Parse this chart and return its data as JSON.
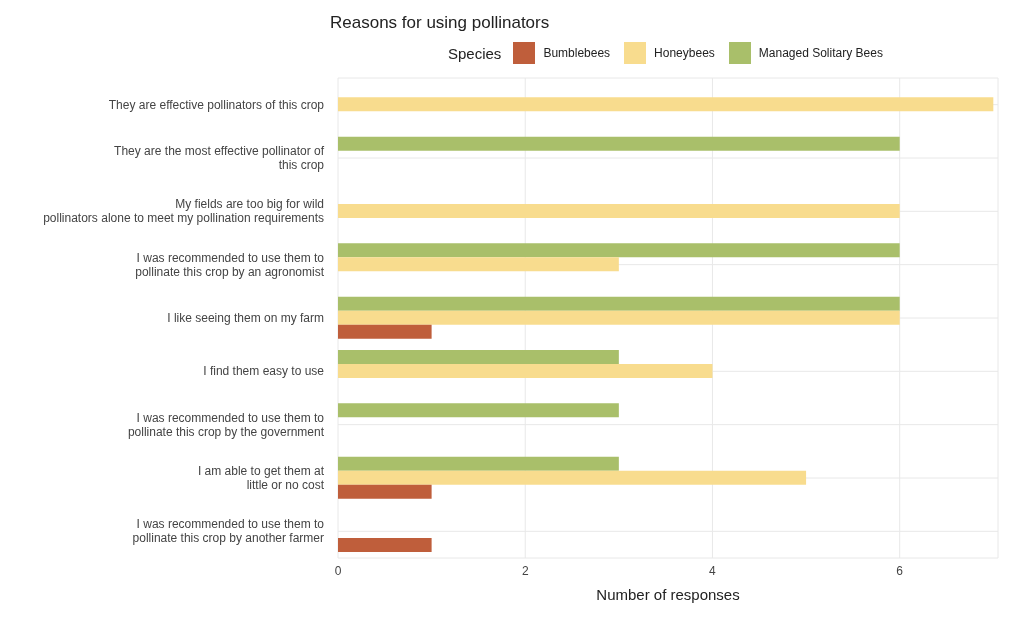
{
  "chart_data": {
    "type": "bar",
    "orientation": "horizontal",
    "title": "Reasons for using pollinators",
    "legend_title": "Species",
    "xlabel": "Number of responses",
    "categories": [
      "They are effective pollinators of this crop",
      "They are the most effective pollinator of\nthis crop",
      "My fields are too big for wild\npollinators alone to meet my pollination requirements",
      "I was recommended to use them to\npollinate this crop by an agronomist",
      "I like seeing them on my farm",
      "I find them easy to use",
      "I was recommended to use them to\npollinate this crop by the government",
      "I am able to get them at\nlittle or no cost",
      "I was recommended to use them to\npollinate this crop by another farmer"
    ],
    "series": [
      {
        "name": "Bumblebees",
        "color": "#bf5e3b",
        "values": [
          null,
          null,
          null,
          null,
          1,
          null,
          null,
          1,
          1
        ]
      },
      {
        "name": "Honeybees",
        "color": "#f8dc8e",
        "values": [
          7,
          null,
          6,
          3,
          6,
          4,
          null,
          5,
          null
        ]
      },
      {
        "name": "Managed Solitary Bees",
        "color": "#a9bf6a",
        "values": [
          null,
          6,
          null,
          6,
          6,
          3,
          3,
          3,
          null
        ]
      }
    ],
    "xlim": [
      0,
      7.05
    ],
    "xticks": [
      0,
      2,
      4,
      6
    ],
    "grid": true,
    "legend": "top"
  }
}
